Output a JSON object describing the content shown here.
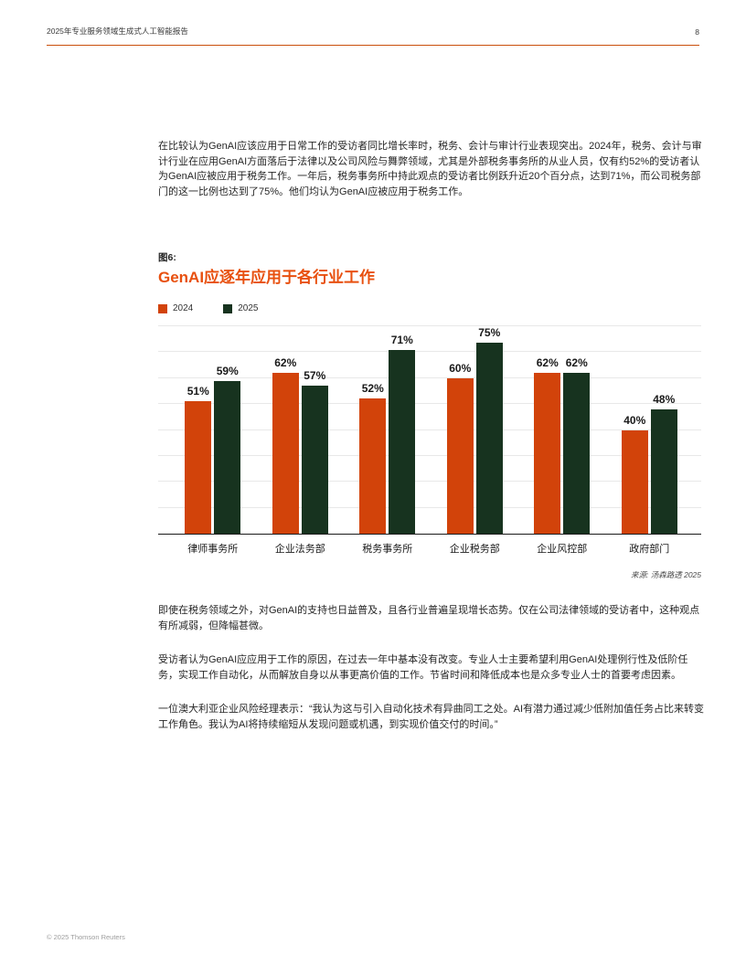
{
  "header": {
    "title": "2025年专业服务领域生成式人工智能报告",
    "page_number": "8"
  },
  "paragraphs": {
    "p1": "在比较认为GenAI应该应用于日常工作的受访者同比增长率时，税务、会计与审计行业表现突出。2024年，税务、会计与审计行业在应用GenAI方面落后于法律以及公司风险与舞弊领域，尤其是外部税务事务所的从业人员，仅有约52%的受访者认为GenAI应被应用于税务工作。一年后，税务事务所中持此观点的受访者比例跃升近20个百分点，达到71%，而公司税务部门的这一比例也达到了75%。他们均认为GenAI应被应用于税务工作。",
    "p2": "即使在税务领域之外，对GenAI的支持也日益普及，且各行业普遍呈现增长态势。仅在公司法律领域的受访者中，这种观点有所减弱，但降幅甚微。",
    "p3": "受访者认为GenAI应应用于工作的原因，在过去一年中基本没有改变。专业人士主要希望利用GenAI处理例行性及低阶任务，实现工作自动化，从而解放自身以从事更高价值的工作。节省时间和降低成本也是众多专业人士的首要考虑因素。",
    "p4": "一位澳大利亚企业风险经理表示：“我认为这与引入自动化技术有异曲同工之处。AI有潜力通过减少低附加值任务占比来转变工作角色。我认为AI将持续缩短从发现问题或机遇，到实现价值交付的时间。”"
  },
  "figure": {
    "label": "图6:",
    "title": "GenAI应逐年应用于各行业工作",
    "source": "来源: 汤森路透 2025"
  },
  "chart_data": {
    "type": "bar",
    "title": "GenAI应逐年应用于各行业工作",
    "categories": [
      "律师事务所",
      "企业法务部",
      "税务事务所",
      "企业税务部",
      "企业风控部",
      "政府部门"
    ],
    "series": [
      {
        "name": "2024",
        "color": "#d2430a",
        "values": [
          51,
          62,
          52,
          60,
          62,
          40
        ]
      },
      {
        "name": "2025",
        "color": "#17331f",
        "values": [
          59,
          57,
          71,
          75,
          62,
          48
        ]
      }
    ],
    "value_suffix": "%",
    "xlabel": "",
    "ylabel": "",
    "ylim": [
      0,
      80
    ],
    "gridline_step": 10,
    "grid": true,
    "legend_position": "top-left"
  },
  "footer": {
    "copyright": "© 2025 Thomson Reuters"
  },
  "colors": {
    "accent_orange": "#e8500f",
    "rule_orange": "#c94f0c",
    "bar_orange": "#d2430a",
    "bar_green": "#17331f"
  }
}
